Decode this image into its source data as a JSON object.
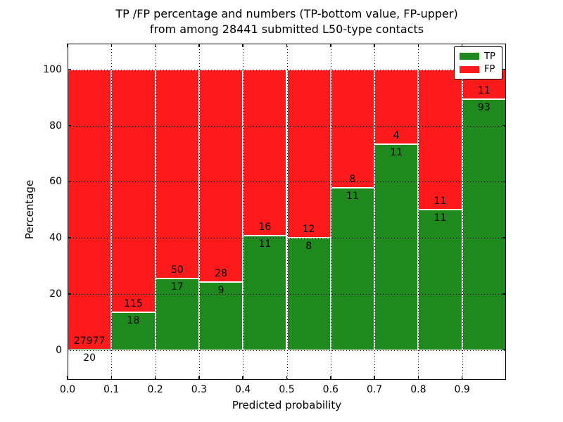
{
  "figure": {
    "title_line1": "TP /FP percentage and numbers (TP-bottom value, FP-upper)",
    "title_line2": "from among 28441 submitted L50-type contacts"
  },
  "chart_data": {
    "type": "bar",
    "subtype": "stacked-percentage-histogram",
    "title": "TP /FP percentage and numbers (TP-bottom value, FP-upper)\nfrom among 28441 submitted L50-type contacts",
    "xlabel": "Predicted probability",
    "ylabel": "Percentage",
    "total_submitted_contacts": 28441,
    "x_bin_edges": [
      0.0,
      0.1,
      0.2,
      0.3,
      0.4,
      0.5,
      0.6,
      0.7,
      0.8,
      0.9,
      1.0
    ],
    "xtick_values": [
      0.0,
      0.1,
      0.2,
      0.3,
      0.4,
      0.5,
      0.6,
      0.7,
      0.8,
      0.9
    ],
    "xtick_labels": [
      "0.0",
      "0.1",
      "0.2",
      "0.3",
      "0.4",
      "0.5",
      "0.6",
      "0.7",
      "0.8",
      "0.9"
    ],
    "ytick_values": [
      0,
      20,
      40,
      60,
      80,
      100
    ],
    "ytick_labels": [
      "0",
      "20",
      "40",
      "60",
      "80",
      "100"
    ],
    "xlim": [
      0.0,
      1.0
    ],
    "ylim": [
      -10.6,
      109.2
    ],
    "grid": "dotted black, both axes, drawn over bars",
    "bars_sum_to": 100,
    "series": [
      {
        "name": "TP",
        "color": "#1e8a1e",
        "counts": [
          20,
          18,
          17,
          9,
          11,
          8,
          11,
          11,
          11,
          93
        ]
      },
      {
        "name": "FP",
        "color": "#fc1a1a",
        "counts": [
          27977,
          115,
          50,
          28,
          16,
          12,
          8,
          4,
          11,
          11
        ]
      }
    ],
    "tp_percent": [
      0.07,
      13.53,
      25.37,
      24.32,
      40.74,
      40.0,
      57.89,
      73.33,
      50.0,
      89.42
    ],
    "label_rule": "FP count printed just above the TP/FP boundary, TP count just below it",
    "legend": {
      "position": "upper right",
      "entries": [
        {
          "label": "TP",
          "color": "#1e8a1e"
        },
        {
          "label": "FP",
          "color": "#fc1a1a"
        }
      ]
    }
  }
}
